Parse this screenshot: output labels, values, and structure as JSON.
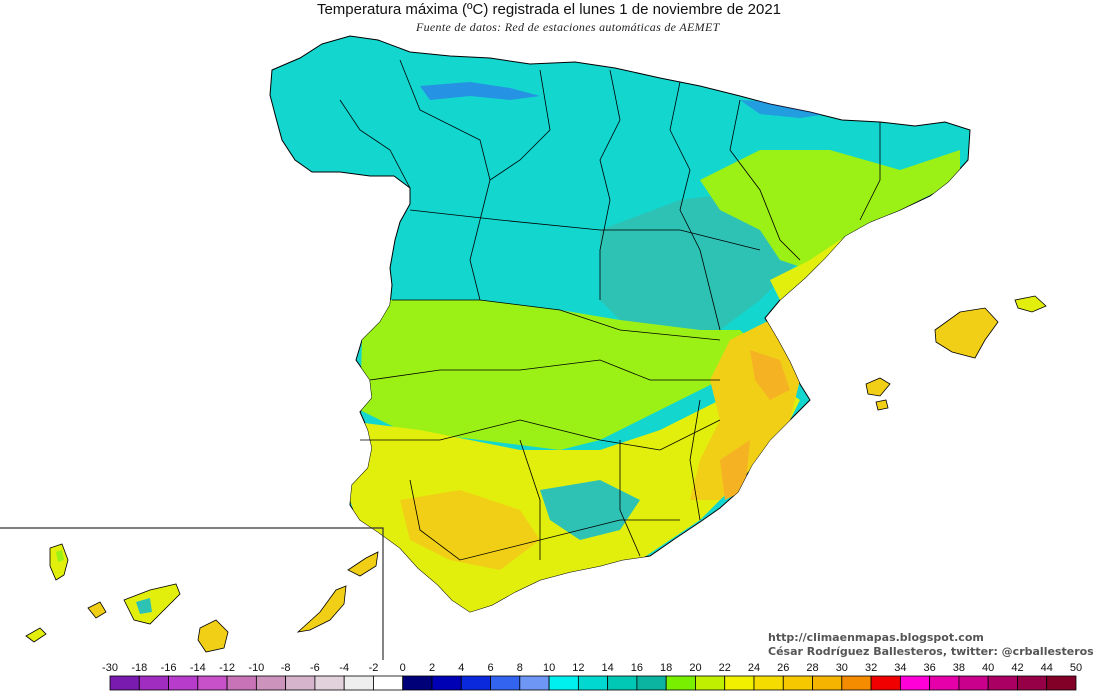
{
  "title": "Temperatura máxima (ºC) registrada el lunes 1 de noviembre de 2021",
  "subtitle": "Fuente de datos: Red de estaciones automáticas de AEMET",
  "credits": {
    "url": "http://climaenmapas.blogspot.com",
    "author": "César Rodríguez Ballesteros, twitter: @crballesteros"
  },
  "legend": {
    "ticks": [
      "-30",
      "-18",
      "-16",
      "-14",
      "-12",
      "-10",
      "-8",
      "-6",
      "-4",
      "-2",
      "0",
      "2",
      "4",
      "6",
      "8",
      "10",
      "12",
      "14",
      "16",
      "18",
      "20",
      "22",
      "24",
      "26",
      "28",
      "30",
      "32",
      "34",
      "36",
      "38",
      "40",
      "42",
      "44",
      "50"
    ],
    "colors": [
      "#7a1bb0",
      "#a02cc0",
      "#b83ccc",
      "#c850c8",
      "#c873b8",
      "#cc93bd",
      "#d6b4cc",
      "#e2d2dc",
      "#eeeeee",
      "#ffffff",
      "#000078",
      "#0000b4",
      "#0a28dc",
      "#3264f0",
      "#6e96f5",
      "#00f0f0",
      "#00d8d0",
      "#00c8b4",
      "#0ab4a0",
      "#78f000",
      "#c0f000",
      "#f0f000",
      "#f5dc00",
      "#f5c800",
      "#f5b400",
      "#f58c00",
      "#f00000",
      "#ff00d8",
      "#e600aa",
      "#c8008c",
      "#aa0064",
      "#960046",
      "#820028"
    ],
    "colors_label": "color scale from cold (purple) to hot (dark red)"
  },
  "map": {
    "region_colors": {
      "sea": "#ffffff",
      "border": "#000000",
      "cool_north": "#13d6cf",
      "cool_mid": "#2ec2b4",
      "mild": "#9bf016",
      "warm": "#e2ef0c",
      "hot": "#f1cf16",
      "very_hot": "#f5b324"
    }
  }
}
